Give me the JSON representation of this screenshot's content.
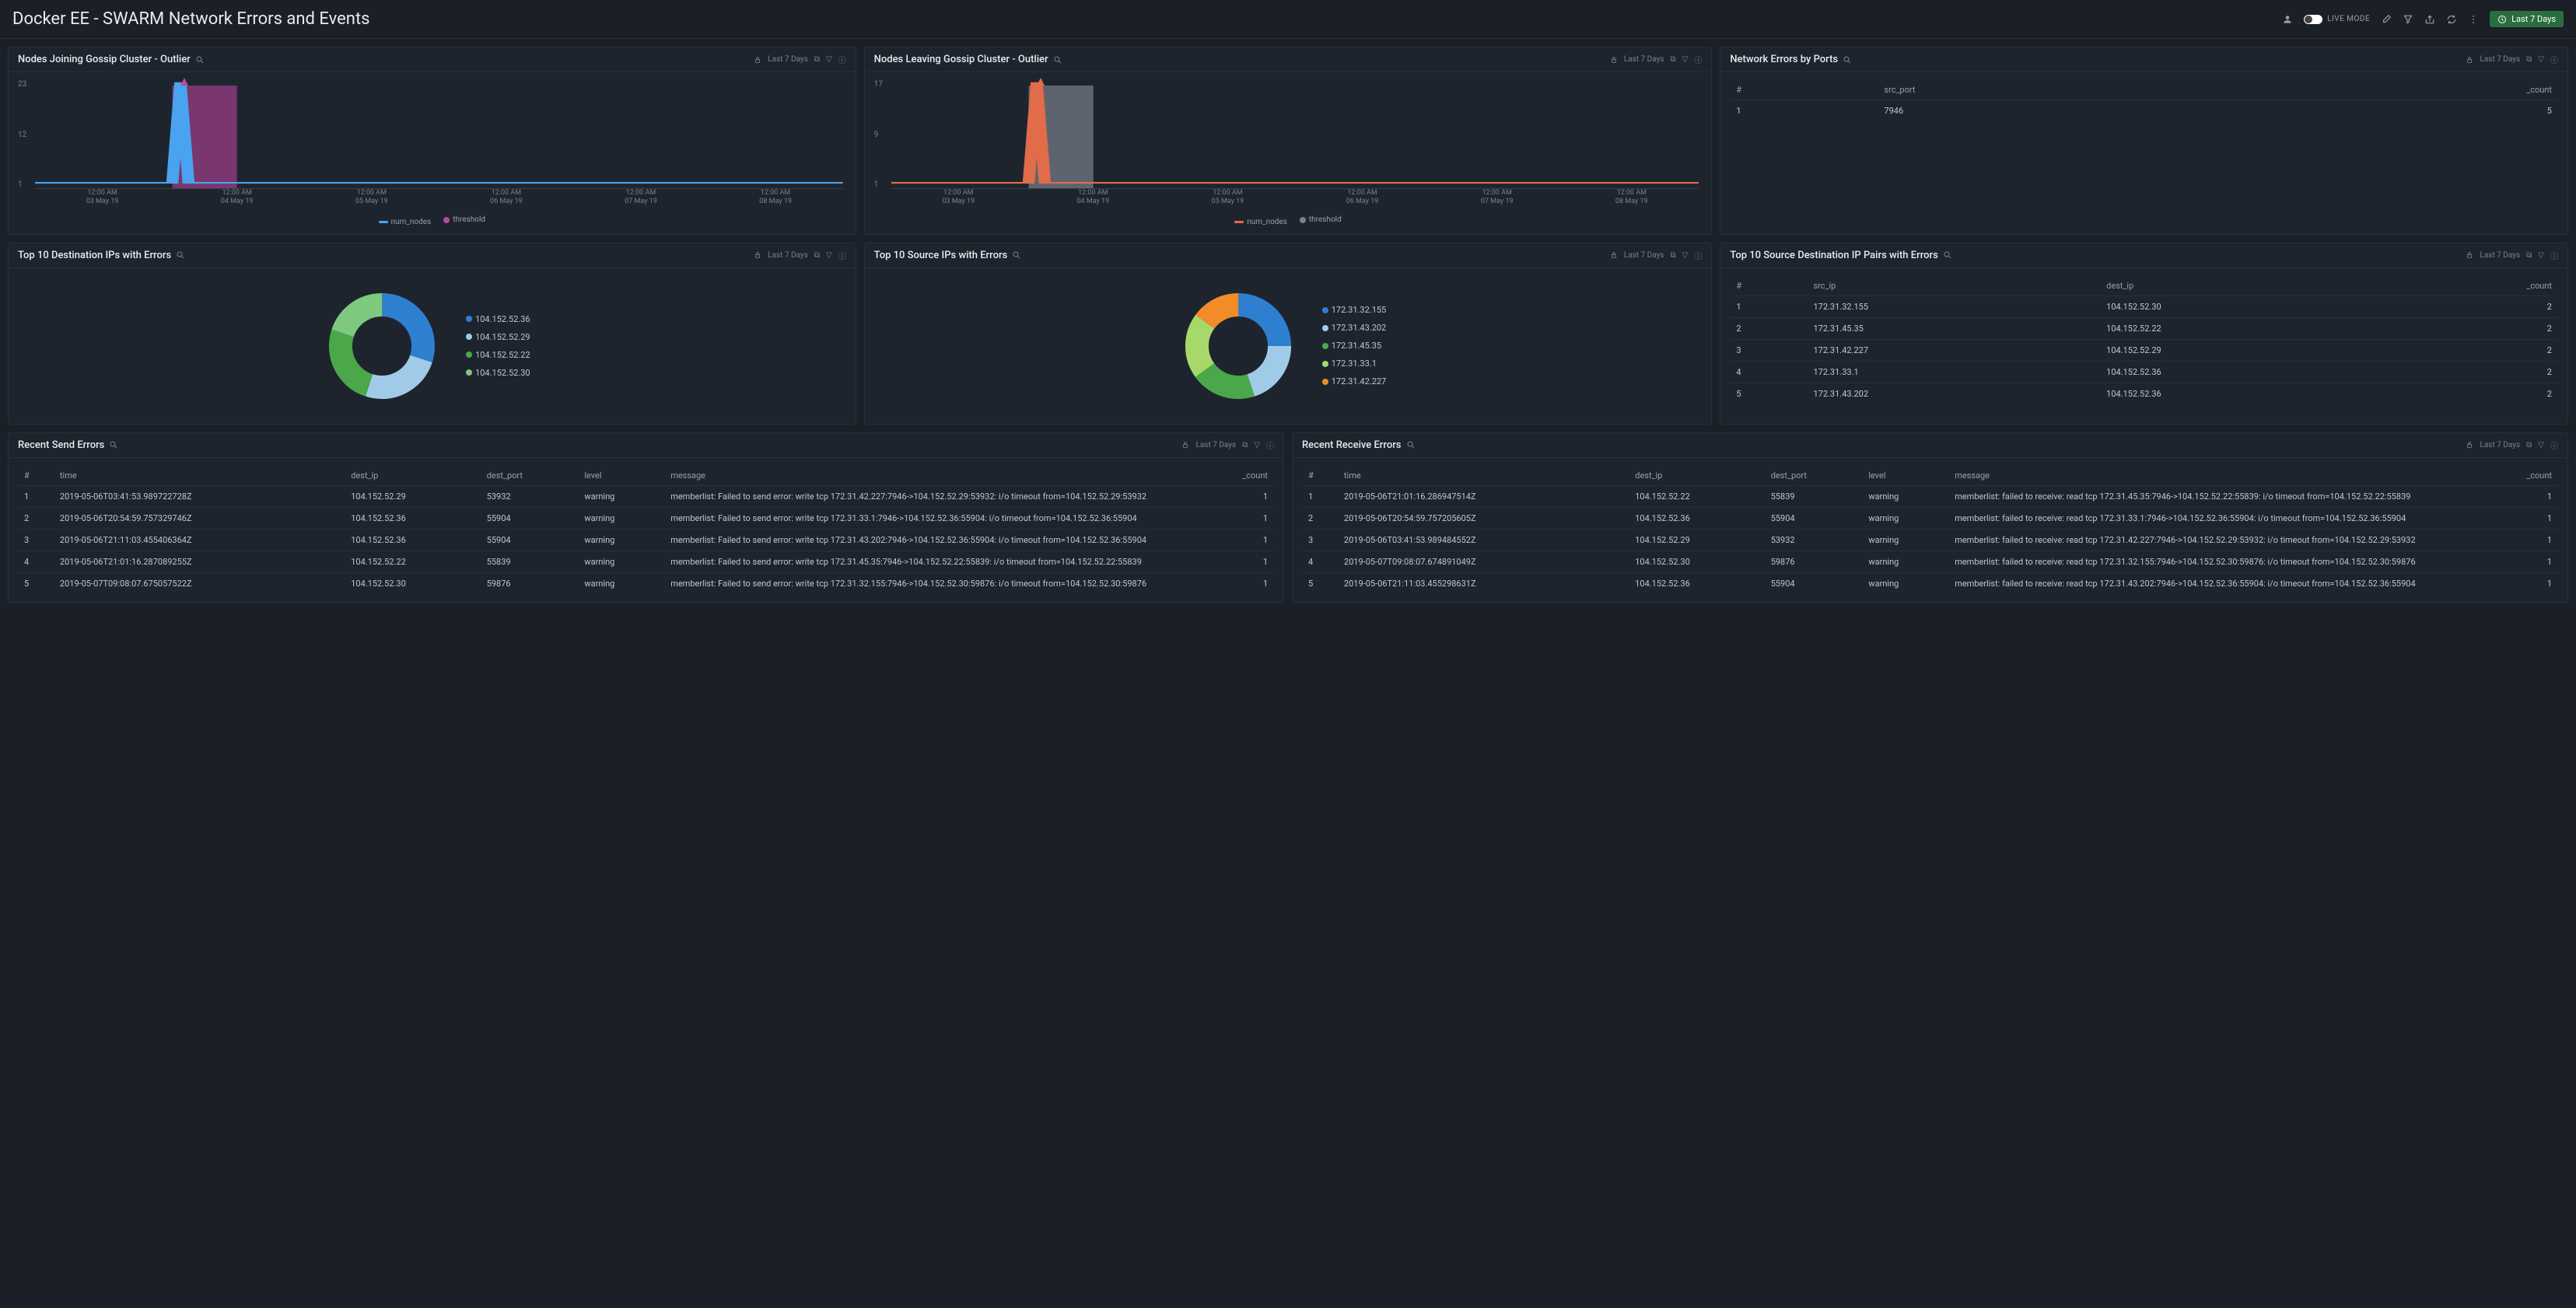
{
  "header": {
    "title": "Docker EE - SWARM Network Errors and Events",
    "live_mode": "LIVE MODE",
    "time_range": "Last 7 Days"
  },
  "panels": {
    "join": {
      "title": "Nodes Joining Gossip Cluster - Outlier",
      "time": "Last 7 Days",
      "y_ticks": [
        "23",
        "12",
        "1"
      ],
      "x_ticks": [
        "12:00 AM\n03 May 19",
        "12:00 AM\n04 May 19",
        "12:00 AM\n05 May 19",
        "12:00 AM\n06 May 19",
        "12:00 AM\n07 May 19",
        "12:00 AM\n08 May 19"
      ],
      "legend": [
        {
          "label": "num_nodes",
          "color": "#4aa3f0",
          "type": "line"
        },
        {
          "label": "threshold",
          "color": "#b94a9c",
          "type": "dot"
        }
      ],
      "line_color": "#4aa3f0",
      "fill_color": "#8a3a7a",
      "spike_x": 18
    },
    "leave": {
      "title": "Nodes Leaving Gossip Cluster - Outlier",
      "time": "Last 7 Days",
      "y_ticks": [
        "17",
        "9",
        "1"
      ],
      "x_ticks": [
        "12:00 AM\n03 May 19",
        "12:00 AM\n04 May 19",
        "12:00 AM\n05 May 19",
        "12:00 AM\n06 May 19",
        "12:00 AM\n07 May 19",
        "12:00 AM\n08 May 19"
      ],
      "legend": [
        {
          "label": "num_nodes",
          "color": "#e06c4a",
          "type": "line"
        },
        {
          "label": "threshold",
          "color": "#7a828e",
          "type": "dot"
        }
      ],
      "line_color": "#e06c4a",
      "fill_color": "#6a707a",
      "spike_x": 18
    },
    "ports": {
      "title": "Network Errors by Ports",
      "time": "Last 7 Days",
      "columns": [
        "#",
        "src_port",
        "_count"
      ],
      "rows": [
        [
          "1",
          "7946",
          "5"
        ]
      ]
    },
    "dest_ips": {
      "title": "Top 10 Destination IPs with Errors",
      "time": "Last 7 Days",
      "items": [
        {
          "label": "104.152.52.36",
          "color": "#2f7fd1",
          "value": 30
        },
        {
          "label": "104.152.52.29",
          "color": "#9fcbe8",
          "value": 25
        },
        {
          "label": "104.152.52.22",
          "color": "#4aa84a",
          "value": 25
        },
        {
          "label": "104.152.52.30",
          "color": "#7fc97f",
          "value": 20
        }
      ]
    },
    "src_ips": {
      "title": "Top 10 Source IPs with Errors",
      "time": "Last 7 Days",
      "items": [
        {
          "label": "172.31.32.155",
          "color": "#2f7fd1",
          "value": 25
        },
        {
          "label": "172.31.43.202",
          "color": "#9fcbe8",
          "value": 20
        },
        {
          "label": "172.31.45.35",
          "color": "#4aa84a",
          "value": 20
        },
        {
          "label": "172.31.33.1",
          "color": "#a6d96a",
          "value": 20
        },
        {
          "label": "172.31.42.227",
          "color": "#f28c28",
          "value": 15
        }
      ]
    },
    "pairs": {
      "title": "Top 10 Source Destination IP Pairs with Errors",
      "time": "Last 7 Days",
      "columns": [
        "#",
        "src_ip",
        "dest_ip",
        "_count"
      ],
      "rows": [
        [
          "1",
          "172.31.32.155",
          "104.152.52.30",
          "2"
        ],
        [
          "2",
          "172.31.45.35",
          "104.152.52.22",
          "2"
        ],
        [
          "3",
          "172.31.42.227",
          "104.152.52.29",
          "2"
        ],
        [
          "4",
          "172.31.33.1",
          "104.152.52.36",
          "2"
        ],
        [
          "5",
          "172.31.43.202",
          "104.152.52.36",
          "2"
        ]
      ]
    },
    "send": {
      "title": "Recent Send Errors",
      "time": "Last 7 Days",
      "columns": [
        "#",
        "time",
        "dest_ip",
        "dest_port",
        "level",
        "message",
        "_count"
      ],
      "rows": [
        [
          "1",
          "2019-05-06T03:41:53.989722728Z",
          "104.152.52.29",
          "53932",
          "warning",
          "memberlist: Failed to send error: write tcp 172.31.42.227:7946->104.152.52.29:53932: i/o timeout from=104.152.52.29:53932",
          "1"
        ],
        [
          "2",
          "2019-05-06T20:54:59.757329746Z",
          "104.152.52.36",
          "55904",
          "warning",
          "memberlist: Failed to send error: write tcp 172.31.33.1:7946->104.152.52.36:55904: i/o timeout from=104.152.52.36:55904",
          "1"
        ],
        [
          "3",
          "2019-05-06T21:11:03.455406364Z",
          "104.152.52.36",
          "55904",
          "warning",
          "memberlist: Failed to send error: write tcp 172.31.43.202:7946->104.152.52.36:55904: i/o timeout from=104.152.52.36:55904",
          "1"
        ],
        [
          "4",
          "2019-05-06T21:01:16.287089255Z",
          "104.152.52.22",
          "55839",
          "warning",
          "memberlist: Failed to send error: write tcp 172.31.45.35:7946->104.152.52.22:55839: i/o timeout from=104.152.52.22:55839",
          "1"
        ],
        [
          "5",
          "2019-05-07T09:08:07.675057522Z",
          "104.152.52.30",
          "59876",
          "warning",
          "memberlist: Failed to send error: write tcp 172.31.32.155:7946->104.152.52.30:59876: i/o timeout from=104.152.52.30:59876",
          "1"
        ]
      ]
    },
    "recv": {
      "title": "Recent Receive Errors",
      "time": "Last 7 Days",
      "columns": [
        "#",
        "time",
        "dest_ip",
        "dest_port",
        "level",
        "message",
        "_count"
      ],
      "rows": [
        [
          "1",
          "2019-05-06T21:01:16.286947514Z",
          "104.152.52.22",
          "55839",
          "warning",
          "memberlist: failed to receive: read tcp 172.31.45.35:7946->104.152.52.22:55839: i/o timeout from=104.152.52.22:55839",
          "1"
        ],
        [
          "2",
          "2019-05-06T20:54:59.757205605Z",
          "104.152.52.36",
          "55904",
          "warning",
          "memberlist: failed to receive: read tcp 172.31.33.1:7946->104.152.52.36:55904: i/o timeout from=104.152.52.36:55904",
          "1"
        ],
        [
          "3",
          "2019-05-06T03:41:53.989484552Z",
          "104.152.52.29",
          "53932",
          "warning",
          "memberlist: failed to receive: read tcp 172.31.42.227:7946->104.152.52.29:53932: i/o timeout from=104.152.52.29:53932",
          "1"
        ],
        [
          "4",
          "2019-05-07T09:08:07.674891049Z",
          "104.152.52.30",
          "59876",
          "warning",
          "memberlist: failed to receive: read tcp 172.31.32.155:7946->104.152.52.30:59876: i/o timeout from=104.152.52.30:59876",
          "1"
        ],
        [
          "5",
          "2019-05-06T21:11:03.455298631Z",
          "104.152.52.36",
          "55904",
          "warning",
          "memberlist: failed to receive: read tcp 172.31.43.202:7946->104.152.52.36:55904: i/o timeout from=104.152.52.36:55904",
          "1"
        ]
      ]
    }
  }
}
